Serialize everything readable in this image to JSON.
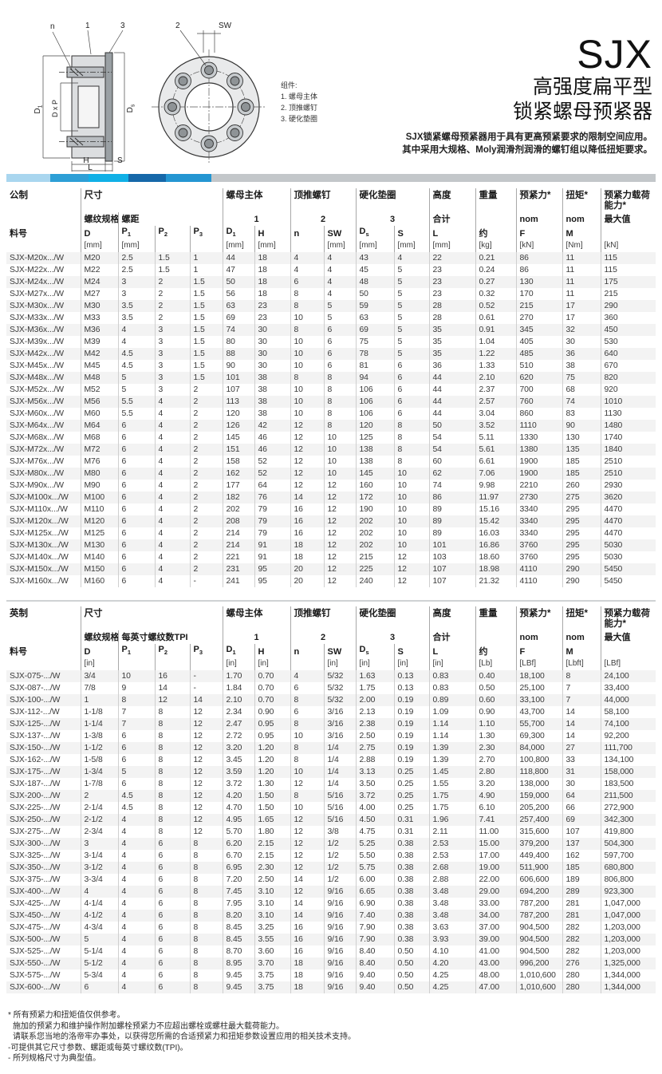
{
  "header": {
    "product_code": "SJX",
    "subtitle_line1": "高强度扁平型",
    "subtitle_line2": "锁紧螺母预紧器",
    "description_line1": "SJX锁紧螺母预紧器用于具有更高预紧要求的限制空间应用。",
    "description_line2": "其中采用大规格、Moly润滑剂润滑的螺钉组以降低扭矩要求。"
  },
  "accent_colors": [
    "#a9d6ef",
    "#2d9fd6",
    "#10b0e6",
    "#1668a9",
    "#2496d2",
    "#c3c7ca"
  ],
  "accent_widths": [
    55,
    48,
    50,
    47,
    57,
    557
  ],
  "diagram": {
    "labels": {
      "n": "n",
      "part1": "1",
      "part2": "2",
      "part3": "3",
      "sw": "SW",
      "d1": "D",
      "d1_sub": "1",
      "dxp": "D x P",
      "ds": "D",
      "ds_sub": "s",
      "h": "H",
      "s": "S",
      "l": "L"
    },
    "legend_title": "组件:",
    "legend_items": [
      "1. 螺母主体",
      "2. 顶推螺钉",
      "3. 硬化垫圈"
    ]
  },
  "metric_table": {
    "group_headers": [
      {
        "label": "公制",
        "span": 1
      },
      {
        "label": "尺寸",
        "span": 4
      },
      {
        "label": "螺母主体",
        "span": 2
      },
      {
        "label": "顶推螺钉",
        "span": 2
      },
      {
        "label": "硬化垫圈",
        "span": 2
      },
      {
        "label": "高度",
        "span": 1
      },
      {
        "label": "重量",
        "span": 1
      },
      {
        "label": "预紧力*",
        "span": 1
      },
      {
        "label": "扭矩*",
        "span": 1
      },
      {
        "label": "预紧力载荷能力*",
        "span": 1
      }
    ],
    "subgroup_headers": [
      {
        "label": "",
        "span": 1
      },
      {
        "label": "螺纹规格",
        "span": 1
      },
      {
        "label": "螺距",
        "span": 3
      },
      {
        "label": "1",
        "span": 2,
        "align": "center"
      },
      {
        "label": "2",
        "span": 2,
        "align": "center"
      },
      {
        "label": "3",
        "span": 2,
        "align": "center"
      },
      {
        "label": "合计",
        "span": 1
      },
      {
        "label": "",
        "span": 1
      },
      {
        "label": "nom",
        "span": 1
      },
      {
        "label": "nom",
        "span": 1
      },
      {
        "label": "最大值",
        "span": 1
      }
    ],
    "symbol_headers": [
      "料号",
      "D",
      "P_1",
      "P_2",
      "P_3",
      "D_1",
      "H",
      "n",
      "SW",
      "D_s",
      "S",
      "L",
      "约",
      "F",
      "M",
      ""
    ],
    "unit_headers": [
      "",
      "[mm]",
      "[mm]",
      "",
      "",
      "[mm]",
      "[mm]",
      "",
      "[mm]",
      "[mm]",
      "[mm]",
      "[mm]",
      "[kg]",
      "[kN]",
      "[Nm]",
      "[kN]"
    ],
    "rows": [
      [
        "SJX-M20x.../W",
        "M20",
        "2.5",
        "1.5",
        "1",
        "44",
        "18",
        "4",
        "4",
        "43",
        "4",
        "22",
        "0.21",
        "86",
        "11",
        "115"
      ],
      [
        "SJX-M22x.../W",
        "M22",
        "2.5",
        "1.5",
        "1",
        "47",
        "18",
        "4",
        "4",
        "45",
        "5",
        "23",
        "0.24",
        "86",
        "11",
        "115"
      ],
      [
        "SJX-M24x.../W",
        "M24",
        "3",
        "2",
        "1.5",
        "50",
        "18",
        "6",
        "4",
        "48",
        "5",
        "23",
        "0.27",
        "130",
        "11",
        "175"
      ],
      [
        "SJX-M27x.../W",
        "M27",
        "3",
        "2",
        "1.5",
        "56",
        "18",
        "8",
        "4",
        "50",
        "5",
        "23",
        "0.32",
        "170",
        "11",
        "215"
      ],
      [
        "SJX-M30x.../W",
        "M30",
        "3.5",
        "2",
        "1.5",
        "63",
        "23",
        "8",
        "5",
        "59",
        "5",
        "28",
        "0.52",
        "215",
        "17",
        "290"
      ],
      [
        "SJX-M33x.../W",
        "M33",
        "3.5",
        "2",
        "1.5",
        "69",
        "23",
        "10",
        "5",
        "63",
        "5",
        "28",
        "0.61",
        "270",
        "17",
        "360"
      ],
      [
        "SJX-M36x.../W",
        "M36",
        "4",
        "3",
        "1.5",
        "74",
        "30",
        "8",
        "6",
        "69",
        "5",
        "35",
        "0.91",
        "345",
        "32",
        "450"
      ],
      [
        "SJX-M39x.../W",
        "M39",
        "4",
        "3",
        "1.5",
        "80",
        "30",
        "10",
        "6",
        "75",
        "5",
        "35",
        "1.04",
        "405",
        "30",
        "530"
      ],
      [
        "SJX-M42x.../W",
        "M42",
        "4.5",
        "3",
        "1.5",
        "88",
        "30",
        "10",
        "6",
        "78",
        "5",
        "35",
        "1.22",
        "485",
        "36",
        "640"
      ],
      [
        "SJX-M45x.../W",
        "M45",
        "4.5",
        "3",
        "1.5",
        "90",
        "30",
        "10",
        "6",
        "81",
        "6",
        "36",
        "1.33",
        "510",
        "38",
        "670"
      ],
      [
        "SJX-M48x.../W",
        "M48",
        "5",
        "3",
        "1.5",
        "101",
        "38",
        "8",
        "8",
        "94",
        "6",
        "44",
        "2.10",
        "620",
        "75",
        "820"
      ],
      [
        "SJX-M52x.../W",
        "M52",
        "5",
        "3",
        "2",
        "107",
        "38",
        "10",
        "8",
        "106",
        "6",
        "44",
        "2.37",
        "700",
        "68",
        "920"
      ],
      [
        "SJX-M56x.../W",
        "M56",
        "5.5",
        "4",
        "2",
        "113",
        "38",
        "10",
        "8",
        "106",
        "6",
        "44",
        "2.57",
        "760",
        "74",
        "1010"
      ],
      [
        "SJX-M60x.../W",
        "M60",
        "5.5",
        "4",
        "2",
        "120",
        "38",
        "10",
        "8",
        "106",
        "6",
        "44",
        "3.04",
        "860",
        "83",
        "1130"
      ],
      [
        "SJX-M64x.../W",
        "M64",
        "6",
        "4",
        "2",
        "126",
        "42",
        "12",
        "8",
        "120",
        "8",
        "50",
        "3.52",
        "1110",
        "90",
        "1480"
      ],
      [
        "SJX-M68x.../W",
        "M68",
        "6",
        "4",
        "2",
        "145",
        "46",
        "12",
        "10",
        "125",
        "8",
        "54",
        "5.11",
        "1330",
        "130",
        "1740"
      ],
      [
        "SJX-M72x.../W",
        "M72",
        "6",
        "4",
        "2",
        "151",
        "46",
        "12",
        "10",
        "138",
        "8",
        "54",
        "5.61",
        "1380",
        "135",
        "1840"
      ],
      [
        "SJX-M76x.../W",
        "M76",
        "6",
        "4",
        "2",
        "158",
        "52",
        "12",
        "10",
        "138",
        "8",
        "60",
        "6.61",
        "1900",
        "185",
        "2510"
      ],
      [
        "SJX-M80x.../W",
        "M80",
        "6",
        "4",
        "2",
        "162",
        "52",
        "12",
        "10",
        "145",
        "10",
        "62",
        "7.06",
        "1900",
        "185",
        "2510"
      ],
      [
        "SJX-M90x.../W",
        "M90",
        "6",
        "4",
        "2",
        "177",
        "64",
        "12",
        "12",
        "160",
        "10",
        "74",
        "9.98",
        "2210",
        "260",
        "2930"
      ],
      [
        "SJX-M100x.../W",
        "M100",
        "6",
        "4",
        "2",
        "182",
        "76",
        "14",
        "12",
        "172",
        "10",
        "86",
        "11.97",
        "2730",
        "275",
        "3620"
      ],
      [
        "SJX-M110x.../W",
        "M110",
        "6",
        "4",
        "2",
        "202",
        "79",
        "16",
        "12",
        "190",
        "10",
        "89",
        "15.16",
        "3340",
        "295",
        "4470"
      ],
      [
        "SJX-M120x.../W",
        "M120",
        "6",
        "4",
        "2",
        "208",
        "79",
        "16",
        "12",
        "202",
        "10",
        "89",
        "15.42",
        "3340",
        "295",
        "4470"
      ],
      [
        "SJX-M125x.../W",
        "M125",
        "6",
        "4",
        "2",
        "214",
        "79",
        "16",
        "12",
        "202",
        "10",
        "89",
        "16.03",
        "3340",
        "295",
        "4470"
      ],
      [
        "SJX-M130x.../W",
        "M130",
        "6",
        "4",
        "2",
        "214",
        "91",
        "18",
        "12",
        "202",
        "10",
        "101",
        "16.86",
        "3760",
        "295",
        "5030"
      ],
      [
        "SJX-M140x.../W",
        "M140",
        "6",
        "4",
        "2",
        "221",
        "91",
        "18",
        "12",
        "215",
        "12",
        "103",
        "18.60",
        "3760",
        "295",
        "5030"
      ],
      [
        "SJX-M150x.../W",
        "M150",
        "6",
        "4",
        "2",
        "231",
        "95",
        "20",
        "12",
        "225",
        "12",
        "107",
        "18.98",
        "4110",
        "290",
        "5450"
      ],
      [
        "SJX-M160x.../W",
        "M160",
        "6",
        "4",
        "-",
        "241",
        "95",
        "20",
        "12",
        "240",
        "12",
        "107",
        "21.32",
        "4110",
        "290",
        "5450"
      ]
    ]
  },
  "imperial_table": {
    "group_headers": [
      {
        "label": "英制",
        "span": 1
      },
      {
        "label": "尺寸",
        "span": 4
      },
      {
        "label": "螺母主体",
        "span": 2
      },
      {
        "label": "顶推螺钉",
        "span": 2
      },
      {
        "label": "硬化垫圈",
        "span": 2
      },
      {
        "label": "高度",
        "span": 1
      },
      {
        "label": "重量",
        "span": 1
      },
      {
        "label": "预紧力*",
        "span": 1
      },
      {
        "label": "扭矩*",
        "span": 1
      },
      {
        "label": "预紧力载荷能力*",
        "span": 1
      }
    ],
    "subgroup_headers": [
      {
        "label": "",
        "span": 1
      },
      {
        "label": "螺纹规格",
        "span": 1
      },
      {
        "label": "每英寸螺纹数TPI",
        "span": 3
      },
      {
        "label": "1",
        "span": 2,
        "align": "center"
      },
      {
        "label": "2",
        "span": 2,
        "align": "center"
      },
      {
        "label": "3",
        "span": 2,
        "align": "center"
      },
      {
        "label": "合计",
        "span": 1
      },
      {
        "label": "",
        "span": 1
      },
      {
        "label": "nom",
        "span": 1
      },
      {
        "label": "nom",
        "span": 1
      },
      {
        "label": "最大值",
        "span": 1
      }
    ],
    "symbol_headers": [
      "料号",
      "D",
      "P_1",
      "P_2",
      "P_3",
      "D_1",
      "H",
      "n",
      "SW",
      "D_s",
      "S",
      "L",
      "约",
      "F",
      "M",
      ""
    ],
    "unit_headers": [
      "",
      "[in]",
      "",
      "",
      "",
      "[in]",
      "[in]",
      "",
      "[in]",
      "[in]",
      "[in]",
      "[in]",
      "[Lb]",
      "[LBf]",
      "[Lbft]",
      "[LBf]"
    ],
    "rows": [
      [
        "SJX-075-.../W",
        "3/4",
        "10",
        "16",
        "-",
        "1.70",
        "0.70",
        "4",
        "5/32",
        "1.63",
        "0.13",
        "0.83",
        "0.40",
        "18,100",
        "8",
        "24,100"
      ],
      [
        "SJX-087-.../W",
        "7/8",
        "9",
        "14",
        "-",
        "1.84",
        "0.70",
        "6",
        "5/32",
        "1.75",
        "0.13",
        "0.83",
        "0.50",
        "25,100",
        "7",
        "33,400"
      ],
      [
        "SJX-100-.../W",
        "1",
        "8",
        "12",
        "14",
        "2.10",
        "0.70",
        "8",
        "5/32",
        "2.00",
        "0.19",
        "0.89",
        "0.60",
        "33,100",
        "7",
        "44,000"
      ],
      [
        "SJX-112-.../W",
        "1-1/8",
        "7",
        "8",
        "12",
        "2.34",
        "0.90",
        "6",
        "3/16",
        "2.13",
        "0.19",
        "1.09",
        "0.90",
        "43,700",
        "14",
        "58,100"
      ],
      [
        "SJX-125-.../W",
        "1-1/4",
        "7",
        "8",
        "12",
        "2.47",
        "0.95",
        "8",
        "3/16",
        "2.38",
        "0.19",
        "1.14",
        "1.10",
        "55,700",
        "14",
        "74,100"
      ],
      [
        "SJX-137-.../W",
        "1-3/8",
        "6",
        "8",
        "12",
        "2.72",
        "0.95",
        "10",
        "3/16",
        "2.50",
        "0.19",
        "1.14",
        "1.30",
        "69,300",
        "14",
        "92,200"
      ],
      [
        "SJX-150-.../W",
        "1-1/2",
        "6",
        "8",
        "12",
        "3.20",
        "1.20",
        "8",
        "1/4",
        "2.75",
        "0.19",
        "1.39",
        "2.30",
        "84,000",
        "27",
        "111,700"
      ],
      [
        "SJX-162-.../W",
        "1-5/8",
        "6",
        "8",
        "12",
        "3.45",
        "1.20",
        "8",
        "1/4",
        "2.88",
        "0.19",
        "1.39",
        "2.70",
        "100,800",
        "33",
        "134,100"
      ],
      [
        "SJX-175-.../W",
        "1-3/4",
        "5",
        "8",
        "12",
        "3.59",
        "1.20",
        "10",
        "1/4",
        "3.13",
        "0.25",
        "1.45",
        "2.80",
        "118,800",
        "31",
        "158,000"
      ],
      [
        "SJX-187-.../W",
        "1-7/8",
        "6",
        "8",
        "12",
        "3.72",
        "1.30",
        "12",
        "1/4",
        "3.50",
        "0.25",
        "1.55",
        "3.20",
        "138,000",
        "30",
        "183,500"
      ],
      [
        "SJX-200-.../W",
        "2",
        "4.5",
        "8",
        "12",
        "4.20",
        "1.50",
        "8",
        "5/16",
        "3.72",
        "0.25",
        "1.75",
        "4.90",
        "159,000",
        "64",
        "211,500"
      ],
      [
        "SJX-225-.../W",
        "2-1/4",
        "4.5",
        "8",
        "12",
        "4.70",
        "1.50",
        "10",
        "5/16",
        "4.00",
        "0.25",
        "1.75",
        "6.10",
        "205,200",
        "66",
        "272,900"
      ],
      [
        "SJX-250-.../W",
        "2-1/2",
        "4",
        "8",
        "12",
        "4.95",
        "1.65",
        "12",
        "5/16",
        "4.50",
        "0.31",
        "1.96",
        "7.41",
        "257,400",
        "69",
        "342,300"
      ],
      [
        "SJX-275-.../W",
        "2-3/4",
        "4",
        "8",
        "12",
        "5.70",
        "1.80",
        "12",
        "3/8",
        "4.75",
        "0.31",
        "2.11",
        "11.00",
        "315,600",
        "107",
        "419,800"
      ],
      [
        "SJX-300-.../W",
        "3",
        "4",
        "6",
        "8",
        "6.20",
        "2.15",
        "12",
        "1/2",
        "5.25",
        "0.38",
        "2.53",
        "15.00",
        "379,200",
        "137",
        "504,300"
      ],
      [
        "SJX-325-.../W",
        "3-1/4",
        "4",
        "6",
        "8",
        "6.70",
        "2.15",
        "12",
        "1/2",
        "5.50",
        "0.38",
        "2.53",
        "17.00",
        "449,400",
        "162",
        "597,700"
      ],
      [
        "SJX-350-.../W",
        "3-1/2",
        "4",
        "6",
        "8",
        "6.95",
        "2.30",
        "12",
        "1/2",
        "5.75",
        "0.38",
        "2.68",
        "19.00",
        "511,900",
        "185",
        "680,800"
      ],
      [
        "SJX-375-.../W",
        "3-3/4",
        "4",
        "6",
        "8",
        "7.20",
        "2.50",
        "14",
        "1/2",
        "6.00",
        "0.38",
        "2.88",
        "22.00",
        "606,600",
        "189",
        "806,800"
      ],
      [
        "SJX-400-.../W",
        "4",
        "4",
        "6",
        "8",
        "7.45",
        "3.10",
        "12",
        "9/16",
        "6.65",
        "0.38",
        "3.48",
        "29.00",
        "694,200",
        "289",
        "923,300"
      ],
      [
        "SJX-425-.../W",
        "4-1/4",
        "4",
        "6",
        "8",
        "7.95",
        "3.10",
        "14",
        "9/16",
        "6.90",
        "0.38",
        "3.48",
        "33.00",
        "787,200",
        "281",
        "1,047,000"
      ],
      [
        "SJX-450-.../W",
        "4-1/2",
        "4",
        "6",
        "8",
        "8.20",
        "3.10",
        "14",
        "9/16",
        "7.40",
        "0.38",
        "3.48",
        "34.00",
        "787,200",
        "281",
        "1,047,000"
      ],
      [
        "SJX-475-.../W",
        "4-3/4",
        "4",
        "6",
        "8",
        "8.45",
        "3.25",
        "16",
        "9/16",
        "7.90",
        "0.38",
        "3.63",
        "37.00",
        "904,500",
        "282",
        "1,203,000"
      ],
      [
        "SJX-500-.../W",
        "5",
        "4",
        "6",
        "8",
        "8.45",
        "3.55",
        "16",
        "9/16",
        "7.90",
        "0.38",
        "3.93",
        "39.00",
        "904,500",
        "282",
        "1,203,000"
      ],
      [
        "SJX-525-.../W",
        "5-1/4",
        "4",
        "6",
        "8",
        "8.70",
        "3.60",
        "16",
        "9/16",
        "8.40",
        "0.50",
        "4.10",
        "41.00",
        "904,500",
        "282",
        "1,203,000"
      ],
      [
        "SJX-550-.../W",
        "5-1/2",
        "4",
        "6",
        "8",
        "8.95",
        "3.70",
        "18",
        "9/16",
        "8.40",
        "0.50",
        "4.20",
        "43.00",
        "996,200",
        "276",
        "1,325,000"
      ],
      [
        "SJX-575-.../W",
        "5-3/4",
        "4",
        "6",
        "8",
        "9.45",
        "3.75",
        "18",
        "9/16",
        "9.40",
        "0.50",
        "4.25",
        "48.00",
        "1,010,600",
        "280",
        "1,344,000"
      ],
      [
        "SJX-600-.../W",
        "6",
        "4",
        "6",
        "8",
        "9.45",
        "3.75",
        "18",
        "9/16",
        "9.40",
        "0.50",
        "4.25",
        "47.00",
        "1,010,600",
        "280",
        "1,344,000"
      ]
    ]
  },
  "footnotes": {
    "lines": [
      "* 所有预紧力和扭矩值仅供参考。",
      "施加的预紧力和维护操作附加螺栓预紧力不应超出螺栓或螺柱最大载荷能力。",
      "请联系您当地的洛帝牢办事处，以获得您所需的合适预紧力和扭矩参数设置应用的相关技术支持。",
      "-可提供其它尺寸参数、螺距或每英寸螺纹数(TPI)。",
      "- 所列规格尺寸为典型值。"
    ]
  }
}
